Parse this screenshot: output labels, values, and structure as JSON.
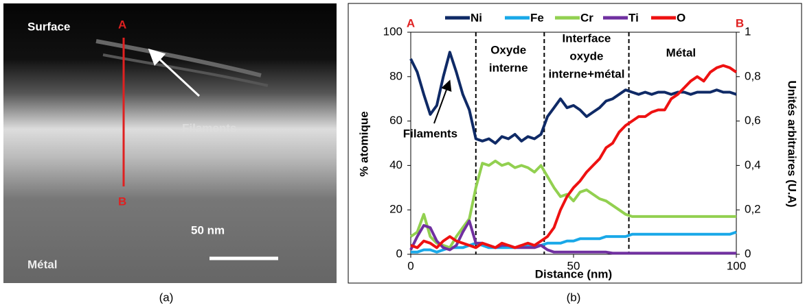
{
  "image": {
    "labels": [
      "Surface",
      "A",
      "B",
      "Filaments",
      "50 nm",
      "Métal"
    ],
    "caption": "(a)"
  },
  "chart_data": {
    "type": "line",
    "caption": "(b)",
    "xlabel": "Distance (nm)",
    "ylabel": "% atomique",
    "y2label": "Unités arbitraires (U.A)",
    "xlim": [
      0,
      100
    ],
    "xticks": [
      0,
      50,
      100
    ],
    "ylim": [
      0,
      100
    ],
    "yticks": [
      0,
      20,
      40,
      60,
      80,
      100
    ],
    "y2lim": [
      0,
      1
    ],
    "y2ticks": [
      0,
      {
        "value": 0.2,
        "label": "0,2"
      },
      {
        "value": 0.4,
        "label": "0,4"
      },
      {
        "value": 0.6,
        "label": "0,6"
      },
      {
        "value": 0.8,
        "label": "0,8"
      },
      1
    ],
    "corner_labels": [
      "A",
      "B"
    ],
    "vlines": [
      20,
      41,
      67
    ],
    "annotations": [
      {
        "lines": [
          "Oxyde",
          "interne"
        ],
        "x": 30
      },
      {
        "lines": [
          "Interface",
          "oxyde",
          "interne+métal"
        ],
        "x": 54
      },
      {
        "lines": [
          "Métal"
        ],
        "x": 83
      },
      {
        "lines": [
          "Filaments"
        ],
        "x": 6
      }
    ],
    "x": [
      0,
      2,
      4,
      6,
      8,
      10,
      12,
      14,
      16,
      18,
      20,
      22,
      24,
      26,
      28,
      30,
      32,
      34,
      36,
      38,
      40,
      42,
      44,
      46,
      48,
      50,
      52,
      54,
      56,
      58,
      60,
      62,
      64,
      66,
      68,
      70,
      72,
      74,
      76,
      78,
      80,
      82,
      84,
      86,
      88,
      90,
      92,
      94,
      96,
      98,
      100
    ],
    "series": [
      {
        "name": "Ni",
        "color": "#0f2a66",
        "values": [
          88,
          82,
          72,
          63,
          67,
          80,
          91,
          82,
          72,
          65,
          52,
          51,
          52,
          50,
          53,
          52,
          54,
          51,
          53,
          52,
          54,
          62,
          66,
          70,
          66,
          67,
          65,
          62,
          64,
          66,
          69,
          70,
          72,
          74,
          73,
          72,
          73,
          72,
          73,
          73,
          72,
          73,
          73,
          72,
          73,
          73,
          73,
          74,
          73,
          73,
          72
        ]
      },
      {
        "name": "Fe",
        "color": "#19a8e8",
        "values": [
          1,
          1,
          2,
          2,
          1,
          2,
          3,
          3,
          3,
          4,
          5,
          4,
          3,
          3,
          3,
          3,
          3,
          4,
          4,
          4,
          4,
          5,
          5,
          5,
          6,
          6,
          7,
          7,
          7,
          7,
          8,
          8,
          8,
          8,
          9,
          9,
          9,
          9,
          9,
          9,
          9,
          9,
          9,
          9,
          9,
          9,
          9,
          9,
          9,
          9,
          10
        ]
      },
      {
        "name": "Cr",
        "color": "#92d050",
        "values": [
          8,
          10,
          18,
          8,
          5,
          4,
          3,
          8,
          12,
          16,
          30,
          41,
          40,
          42,
          40,
          41,
          39,
          40,
          39,
          37,
          40,
          35,
          30,
          26,
          27,
          24,
          28,
          29,
          27,
          25,
          24,
          22,
          20,
          18,
          17,
          17,
          17,
          17,
          17,
          17,
          17,
          17,
          17,
          17,
          17,
          17,
          17,
          17,
          17,
          17,
          17
        ]
      },
      {
        "name": "Ti",
        "color": "#7030a0",
        "values": [
          2,
          8,
          13,
          12,
          6,
          3,
          2,
          4,
          10,
          15,
          5,
          5,
          4,
          3,
          4,
          4,
          3,
          3,
          3,
          3,
          4,
          2,
          1,
          1,
          1,
          1,
          1,
          1,
          1,
          1,
          1,
          0.5,
          0.5,
          0.5,
          0.5,
          0.5,
          0.5,
          0.5,
          0.5,
          0.5,
          0.5,
          0.5,
          0.5,
          0.5,
          0.5,
          0.5,
          0.5,
          0.5,
          0.5,
          0.5,
          0.5
        ]
      },
      {
        "name": "O",
        "color": "#ee1111",
        "axis": "y2",
        "values": [
          0.04,
          0.03,
          0.06,
          0.05,
          0.03,
          0.06,
          0.08,
          0.06,
          0.05,
          0.04,
          0.03,
          0.05,
          0.04,
          0.03,
          0.05,
          0.04,
          0.03,
          0.04,
          0.05,
          0.04,
          0.06,
          0.08,
          0.12,
          0.2,
          0.26,
          0.3,
          0.33,
          0.37,
          0.4,
          0.43,
          0.48,
          0.5,
          0.55,
          0.58,
          0.6,
          0.62,
          0.62,
          0.64,
          0.65,
          0.65,
          0.7,
          0.72,
          0.75,
          0.78,
          0.8,
          0.78,
          0.82,
          0.84,
          0.85,
          0.84,
          0.82
        ]
      }
    ]
  }
}
